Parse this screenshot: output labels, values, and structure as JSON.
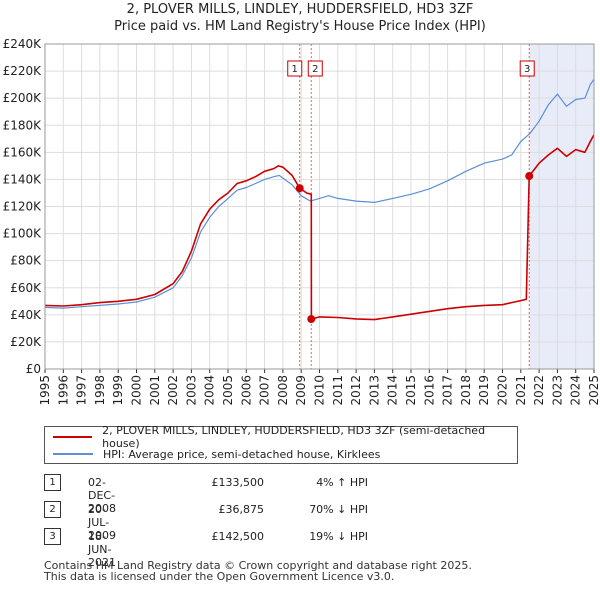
{
  "title_line1": "2, PLOVER MILLS, LINDLEY, HUDDERSFIELD, HD3 3ZF",
  "title_line2": "Price paid vs. HM Land Registry's House Price Index (HPI)",
  "colors": {
    "property": "#cc0000",
    "hpi": "#5b8fd6",
    "marker_band": "#e8ecf8",
    "grid": "#dddddd"
  },
  "chart_data": {
    "type": "line",
    "xlim": [
      1995,
      2025
    ],
    "ylim": [
      0,
      240000
    ],
    "y_ticks": [
      0,
      20000,
      40000,
      60000,
      80000,
      100000,
      120000,
      140000,
      160000,
      180000,
      200000,
      220000,
      240000
    ],
    "y_tick_labels": [
      "£0",
      "£20K",
      "£40K",
      "£60K",
      "£80K",
      "£100K",
      "£120K",
      "£140K",
      "£160K",
      "£180K",
      "£200K",
      "£220K",
      "£240K"
    ],
    "x_ticks": [
      "1995",
      "1996",
      "1997",
      "1998",
      "1999",
      "2000",
      "2001",
      "2002",
      "2003",
      "2004",
      "2005",
      "2006",
      "2007",
      "2008",
      "2009",
      "2010",
      "2011",
      "2012",
      "2013",
      "2014",
      "2015",
      "2016",
      "2017",
      "2018",
      "2019",
      "2020",
      "2021",
      "2022",
      "2023",
      "2024",
      "2025"
    ],
    "series": [
      {
        "name": "2, PLOVER MILLS, LINDLEY, HUDDERSFIELD, HD3 3ZF (semi-detached house)",
        "color": "#cc0000",
        "points": [
          [
            1995.0,
            47000
          ],
          [
            1996.0,
            46500
          ],
          [
            1997.0,
            47500
          ],
          [
            1998.0,
            49000
          ],
          [
            1999.0,
            50000
          ],
          [
            2000.0,
            51500
          ],
          [
            2001.0,
            55000
          ],
          [
            2002.0,
            63000
          ],
          [
            2002.5,
            72000
          ],
          [
            2003.0,
            87000
          ],
          [
            2003.5,
            107000
          ],
          [
            2004.0,
            118000
          ],
          [
            2004.5,
            125000
          ],
          [
            2005.0,
            130000
          ],
          [
            2005.5,
            137000
          ],
          [
            2006.0,
            139000
          ],
          [
            2006.5,
            142000
          ],
          [
            2007.0,
            146000
          ],
          [
            2007.5,
            148000
          ],
          [
            2007.75,
            150000
          ],
          [
            2008.0,
            149000
          ],
          [
            2008.5,
            143000
          ],
          [
            2008.92,
            133500
          ],
          [
            2009.3,
            130000
          ],
          [
            2009.55,
            129000
          ],
          [
            2009.56,
            36875
          ],
          [
            2010.0,
            38500
          ],
          [
            2011.0,
            38000
          ],
          [
            2012.0,
            37000
          ],
          [
            2013.0,
            36500
          ],
          [
            2014.0,
            38500
          ],
          [
            2015.0,
            40500
          ],
          [
            2016.0,
            42500
          ],
          [
            2017.0,
            44500
          ],
          [
            2018.0,
            46000
          ],
          [
            2019.0,
            47000
          ],
          [
            2020.0,
            47500
          ],
          [
            2020.5,
            49000
          ],
          [
            2021.0,
            50500
          ],
          [
            2021.3,
            51500
          ],
          [
            2021.46,
            142500
          ],
          [
            2022.0,
            152000
          ],
          [
            2022.5,
            158000
          ],
          [
            2023.0,
            163000
          ],
          [
            2023.5,
            157000
          ],
          [
            2024.0,
            162000
          ],
          [
            2024.5,
            160000
          ],
          [
            2024.8,
            168000
          ],
          [
            2025.0,
            173000
          ]
        ]
      },
      {
        "name": "HPI: Average price, semi-detached house, Kirklees",
        "color": "#5b8fd6",
        "points": [
          [
            1995.0,
            45500
          ],
          [
            1996.0,
            45000
          ],
          [
            1997.0,
            46000
          ],
          [
            1998.0,
            47000
          ],
          [
            1999.0,
            48000
          ],
          [
            2000.0,
            49500
          ],
          [
            2001.0,
            53000
          ],
          [
            2002.0,
            60000
          ],
          [
            2002.5,
            69000
          ],
          [
            2003.0,
            82000
          ],
          [
            2003.5,
            101000
          ],
          [
            2004.0,
            112000
          ],
          [
            2004.5,
            120000
          ],
          [
            2005.0,
            126000
          ],
          [
            2005.5,
            132000
          ],
          [
            2006.0,
            134000
          ],
          [
            2006.5,
            137000
          ],
          [
            2007.0,
            140000
          ],
          [
            2007.5,
            142000
          ],
          [
            2007.8,
            143000
          ],
          [
            2008.0,
            141000
          ],
          [
            2008.5,
            136000
          ],
          [
            2009.0,
            128000
          ],
          [
            2009.5,
            124000
          ],
          [
            2010.0,
            126000
          ],
          [
            2010.5,
            128000
          ],
          [
            2011.0,
            126000
          ],
          [
            2012.0,
            124000
          ],
          [
            2013.0,
            123000
          ],
          [
            2014.0,
            126000
          ],
          [
            2015.0,
            129000
          ],
          [
            2016.0,
            133000
          ],
          [
            2017.0,
            139000
          ],
          [
            2018.0,
            146000
          ],
          [
            2019.0,
            152000
          ],
          [
            2020.0,
            155000
          ],
          [
            2020.5,
            158000
          ],
          [
            2021.0,
            168000
          ],
          [
            2021.5,
            174000
          ],
          [
            2022.0,
            183000
          ],
          [
            2022.5,
            195000
          ],
          [
            2023.0,
            203000
          ],
          [
            2023.5,
            194000
          ],
          [
            2024.0,
            199000
          ],
          [
            2024.5,
            200000
          ],
          [
            2024.8,
            210000
          ],
          [
            2025.0,
            214000
          ]
        ]
      }
    ],
    "sales": [
      {
        "id": "1",
        "x": 2008.92,
        "price": 133500
      },
      {
        "id": "2",
        "x": 2009.55,
        "price": 36875
      },
      {
        "id": "3",
        "x": 2021.46,
        "price": 142500
      }
    ]
  },
  "legend": {
    "property": "2, PLOVER MILLS, LINDLEY, HUDDERSFIELD, HD3 3ZF (semi-detached house)",
    "hpi": "HPI: Average price, semi-detached house, Kirklees"
  },
  "sales_table": [
    {
      "id": "1",
      "date": "02-DEC-2008",
      "price": "£133,500",
      "hpi": "4% ↑ HPI"
    },
    {
      "id": "2",
      "date": "20-JUL-2009",
      "price": "£36,875",
      "hpi": "70% ↓ HPI"
    },
    {
      "id": "3",
      "date": "18-JUN-2021",
      "price": "£142,500",
      "hpi": "19% ↓ HPI"
    }
  ],
  "footer_line1": "Contains HM Land Registry data © Crown copyright and database right 2025.",
  "footer_line2": "This data is licensed under the Open Government Licence v3.0."
}
